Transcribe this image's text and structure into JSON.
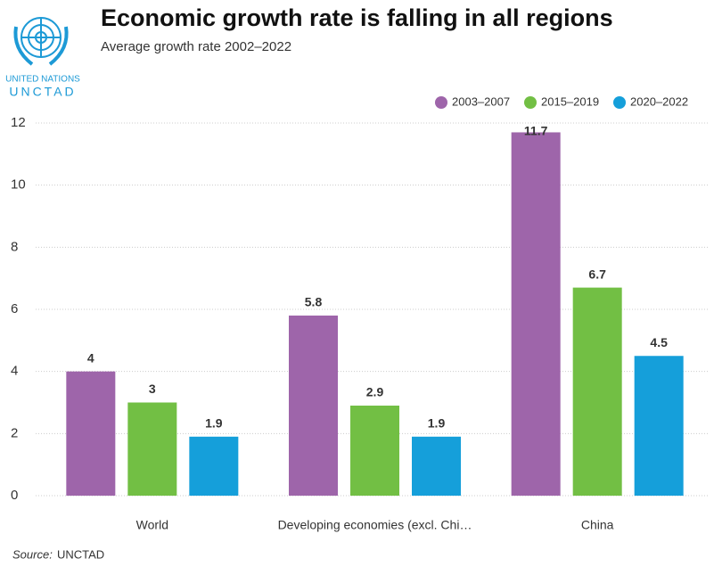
{
  "logo": {
    "line1": "UNITED NATIONS",
    "line2": "UNCTAD"
  },
  "chart_data": {
    "type": "bar",
    "title": "Economic growth rate is falling in all regions",
    "subtitle": "Average growth rate 2002–2022",
    "categories": [
      "World",
      "Developing economies (excl. Chi…",
      "China"
    ],
    "series": [
      {
        "name": "2003–2007",
        "color": "#9e65aa",
        "values": [
          4,
          5.8,
          11.7
        ]
      },
      {
        "name": "2015–2019",
        "color": "#72bf44",
        "values": [
          3,
          2.9,
          6.7
        ]
      },
      {
        "name": "2020–2022",
        "color": "#159fda",
        "values": [
          1.9,
          1.9,
          4.5
        ]
      }
    ],
    "ylim": [
      0,
      12
    ],
    "yticks": [
      0,
      2,
      4,
      6,
      8,
      10,
      12
    ],
    "grid": true,
    "legend": "top-right",
    "source_label": "Source:",
    "source": "UNCTAD"
  }
}
